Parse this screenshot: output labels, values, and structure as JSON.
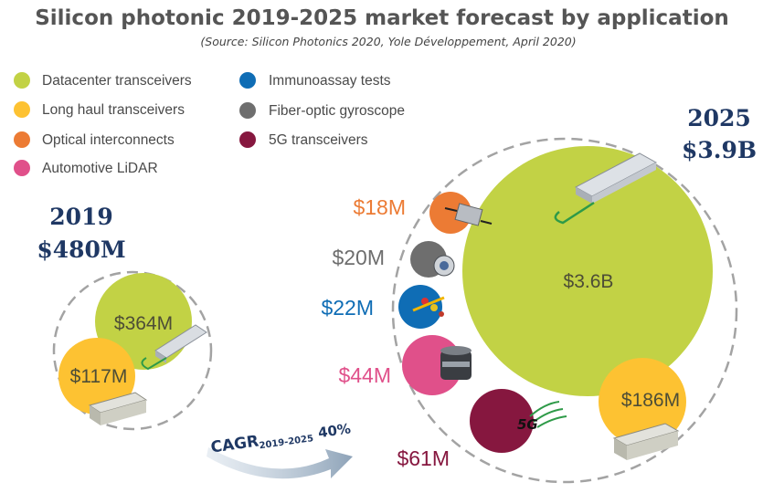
{
  "title": "Silicon photonic 2019-2025 market forecast by application",
  "source": "(Source: Silicon Photonics 2020, Yole Développement, April 2020)",
  "cagr": {
    "label": "CAGR",
    "subscript": "2019-2025",
    "value": "40%"
  },
  "colors": {
    "datacenter": "#c2d245",
    "longhaul": "#fdc232",
    "optical": "#ec7b34",
    "lidar": "#e0508a",
    "immuno": "#0f6db5",
    "gyro": "#6e6e6e",
    "fiveg": "#86173f",
    "text_dark": "#1f3864"
  },
  "legend": [
    {
      "name": "Datacenter transceivers",
      "color": "#c2d245"
    },
    {
      "name": "Long haul transceivers",
      "color": "#fdc232"
    },
    {
      "name": "Optical interconnects",
      "color": "#ec7b34"
    },
    {
      "name": "Automotive LiDAR",
      "color": "#e0508a"
    },
    {
      "name": "Immunoassay tests",
      "color": "#0f6db5"
    },
    {
      "name": "Fiber-optic gyroscope",
      "color": "#6e6e6e"
    },
    {
      "name": "5G transceivers",
      "color": "#86173f"
    }
  ],
  "chart_data": {
    "type": "bubble",
    "years": [
      {
        "year": "2019",
        "total_label": "$480M",
        "total_musd": 480,
        "segments": [
          {
            "application": "Datacenter transceivers",
            "label": "$364M",
            "value_musd": 364
          },
          {
            "application": "Long haul transceivers",
            "label": "$117M",
            "value_musd": 117
          }
        ]
      },
      {
        "year": "2025",
        "total_label": "$3.9B",
        "total_musd": 3900,
        "segments": [
          {
            "application": "Datacenter transceivers",
            "label": "$3.6B",
            "value_musd": 3600
          },
          {
            "application": "Long haul transceivers",
            "label": "$186M",
            "value_musd": 186
          },
          {
            "application": "Optical interconnects",
            "label": "$18M",
            "value_musd": 18
          },
          {
            "application": "Fiber-optic gyroscope",
            "label": "$20M",
            "value_musd": 20
          },
          {
            "application": "Immunoassay tests",
            "label": "$22M",
            "value_musd": 22
          },
          {
            "application": "Automotive LiDAR",
            "label": "$44M",
            "value_musd": 44
          },
          {
            "application": "5G transceivers",
            "label": "$61M",
            "value_musd": 61
          }
        ]
      }
    ],
    "cagr_2019_2025": "40%"
  }
}
